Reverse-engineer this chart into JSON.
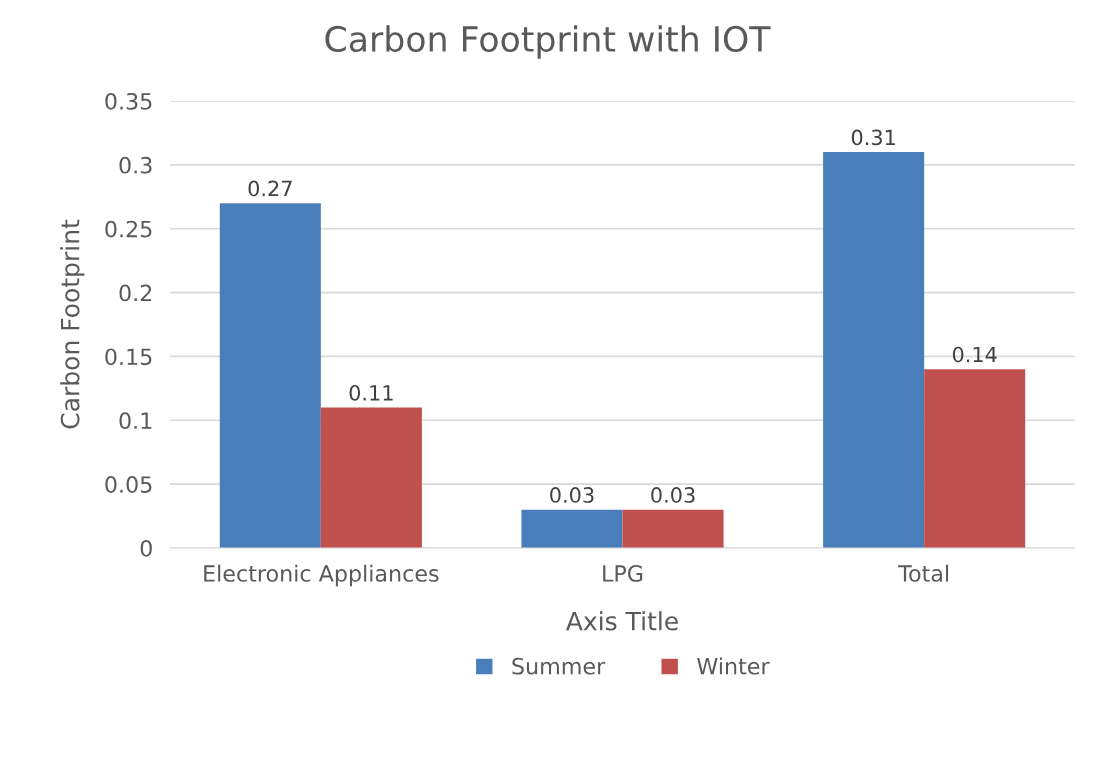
{
  "chart_data": {
    "type": "bar",
    "title": "Carbon Footprint with IOT",
    "xlabel": "Axis Title",
    "ylabel": "Carbon Footprint",
    "categories": [
      "Electronic Appliances",
      "LPG",
      "Total"
    ],
    "series": [
      {
        "name": "Summer",
        "color": "#4a7ebb",
        "values": [
          0.27,
          0.03,
          0.31
        ]
      },
      {
        "name": "Winter",
        "color": "#c0504d",
        "values": [
          0.11,
          0.03,
          0.14
        ]
      }
    ],
    "ylim": [
      0,
      0.35
    ],
    "yticks": [
      0,
      0.05,
      0.1,
      0.15,
      0.2,
      0.25,
      0.3,
      0.35
    ],
    "grid": "y",
    "legend": "bottom",
    "data_labels": true
  }
}
